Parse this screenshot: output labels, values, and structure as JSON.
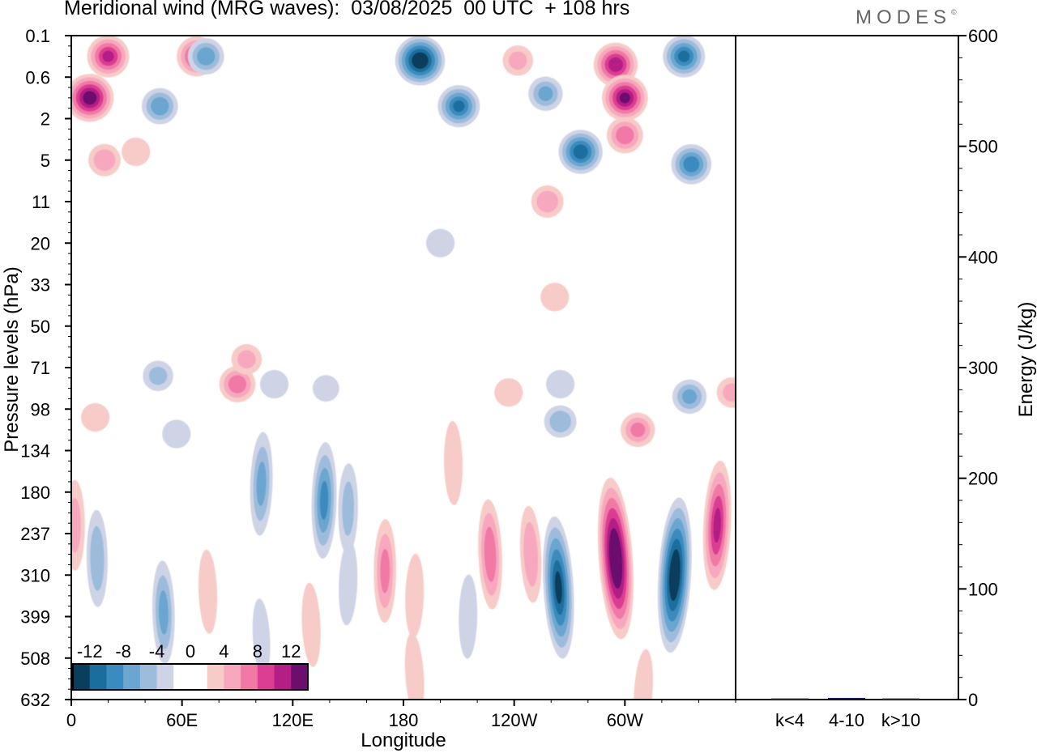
{
  "title": "Meridional wind (MRG waves):  03/08/2025  00 UTC  + 108 hrs",
  "brand": "MODES",
  "brand_mark": "©",
  "chart_data": [
    {
      "type": "contour",
      "title": "Meridional wind (MRG waves):  03/08/2025  00 UTC  + 108 hrs",
      "xlabel": "Longitude",
      "ylabel": "Pressure levels (hPa)",
      "x_range_deg": [
        0,
        360
      ],
      "x_ticks": [
        {
          "lon": 0,
          "label": "0"
        },
        {
          "lon": 60,
          "label": "60E"
        },
        {
          "lon": 120,
          "label": "120E"
        },
        {
          "lon": 180,
          "label": "180"
        },
        {
          "lon": 240,
          "label": "120W"
        },
        {
          "lon": 300,
          "label": "60W"
        }
      ],
      "y_levels": [
        "0.1",
        "0.6",
        "2",
        "5",
        "11",
        "20",
        "33",
        "50",
        "71",
        "98",
        "134",
        "180",
        "237",
        "310",
        "399",
        "508",
        "632"
      ],
      "colorbar": {
        "levels": [
          -14,
          -12,
          -10,
          -8,
          -6,
          -4,
          -2,
          0,
          2,
          4,
          6,
          8,
          10,
          12,
          14
        ],
        "labels": [
          "-12",
          "-8",
          "-4",
          "0",
          "4",
          "8",
          "12"
        ],
        "label_values": [
          -12,
          -8,
          -4,
          0,
          4,
          8,
          12
        ],
        "colors": [
          "#0b3d5c",
          "#1a6e9e",
          "#3a8bbf",
          "#6aa6cf",
          "#9dbcdc",
          "#cfd3e6",
          "#ffffff",
          "#ffffff",
          "#f7cbc8",
          "#f7a8be",
          "#f07aa5",
          "#db3e92",
          "#b41f86",
          "#6b0e6e"
        ]
      },
      "features": [
        {
          "lon": 10,
          "level_index": 1.5,
          "value": 13
        },
        {
          "lon": 20,
          "level_index": 0.5,
          "value": 10
        },
        {
          "lon": 48,
          "level_index": 1.7,
          "value": -7
        },
        {
          "lon": 35,
          "level_index": 2.8,
          "value": 3
        },
        {
          "lon": 68,
          "level_index": 0.5,
          "value": 9
        },
        {
          "lon": 73,
          "level_index": 0.5,
          "value": -7
        },
        {
          "lon": 189,
          "level_index": 0.6,
          "value": -14
        },
        {
          "lon": 210,
          "level_index": 1.7,
          "value": -10
        },
        {
          "lon": 242,
          "level_index": 0.6,
          "value": 4
        },
        {
          "lon": 257,
          "level_index": 1.4,
          "value": -6
        },
        {
          "lon": 295,
          "level_index": 0.7,
          "value": 11
        },
        {
          "lon": 300,
          "level_index": 1.5,
          "value": 12
        },
        {
          "lon": 300,
          "level_index": 2.4,
          "value": 7
        },
        {
          "lon": 276,
          "level_index": 2.8,
          "value": -11
        },
        {
          "lon": 332,
          "level_index": 0.5,
          "value": -10
        },
        {
          "lon": 336,
          "level_index": 3.1,
          "value": -9
        },
        {
          "lon": 18,
          "level_index": 3.0,
          "value": 5
        },
        {
          "lon": 200,
          "level_index": 5.0,
          "value": -3
        },
        {
          "lon": 258,
          "level_index": 4.0,
          "value": 5
        },
        {
          "lon": 262,
          "level_index": 6.3,
          "value": 3
        },
        {
          "lon": 47,
          "level_index": 8.2,
          "value": -4
        },
        {
          "lon": 90,
          "level_index": 8.4,
          "value": 7
        },
        {
          "lon": 95,
          "level_index": 7.8,
          "value": 4
        },
        {
          "lon": 110,
          "level_index": 8.4,
          "value": -3
        },
        {
          "lon": 138,
          "level_index": 8.5,
          "value": -2
        },
        {
          "lon": 237,
          "level_index": 8.6,
          "value": 3
        },
        {
          "lon": 265,
          "level_index": 8.4,
          "value": -3
        },
        {
          "lon": 335,
          "level_index": 8.7,
          "value": -6
        },
        {
          "lon": 307,
          "level_index": 9.5,
          "value": 6
        },
        {
          "lon": 358,
          "level_index": 8.6,
          "value": 4
        },
        {
          "lon": 103,
          "level_index": 10.8,
          "value": -6
        },
        {
          "lon": 137,
          "level_index": 11.2,
          "value": -8
        },
        {
          "lon": 150,
          "level_index": 11.4,
          "value": -4
        },
        {
          "lon": 13,
          "level_index": 9.2,
          "value": 3
        },
        {
          "lon": 57,
          "level_index": 9.6,
          "value": -3
        },
        {
          "lon": 207,
          "level_index": 10.3,
          "value": 3
        },
        {
          "lon": 265,
          "level_index": 9.3,
          "value": -5
        },
        {
          "lon": 227,
          "level_index": 12.5,
          "value": 7
        },
        {
          "lon": 249,
          "level_index": 12.5,
          "value": 5
        },
        {
          "lon": 264,
          "level_index": 13.3,
          "value": -12
        },
        {
          "lon": 295,
          "level_index": 12.6,
          "value": 15
        },
        {
          "lon": 327,
          "level_index": 13.0,
          "value": -14
        },
        {
          "lon": 350,
          "level_index": 11.8,
          "value": 10
        },
        {
          "lon": 150,
          "level_index": 13.2,
          "value": -3
        },
        {
          "lon": 186,
          "level_index": 13.5,
          "value": 3
        },
        {
          "lon": 215,
          "level_index": 14.0,
          "value": -3
        },
        {
          "lon": 170,
          "level_index": 12.9,
          "value": 6
        },
        {
          "lon": 2,
          "level_index": 11.8,
          "value": 4
        },
        {
          "lon": 14,
          "level_index": 12.6,
          "value": -5
        },
        {
          "lon": 50,
          "level_index": 13.9,
          "value": -6
        },
        {
          "lon": 74,
          "level_index": 13.4,
          "value": 3
        },
        {
          "lon": 130,
          "level_index": 14.2,
          "value": 3
        },
        {
          "lon": 103,
          "level_index": 14.5,
          "value": -2
        },
        {
          "lon": 186,
          "level_index": 15.4,
          "value": 3
        },
        {
          "lon": 310,
          "level_index": 15.8,
          "value": 3
        }
      ]
    },
    {
      "type": "bar",
      "ylabel": "Energy (J/kg)",
      "categories": [
        "k<4",
        "4-10",
        "k>10"
      ],
      "values": [
        0.4,
        1.5,
        0.3
      ],
      "ylim": [
        0,
        600
      ],
      "y_ticks": [
        0,
        100,
        200,
        300,
        400,
        500,
        600
      ]
    }
  ]
}
